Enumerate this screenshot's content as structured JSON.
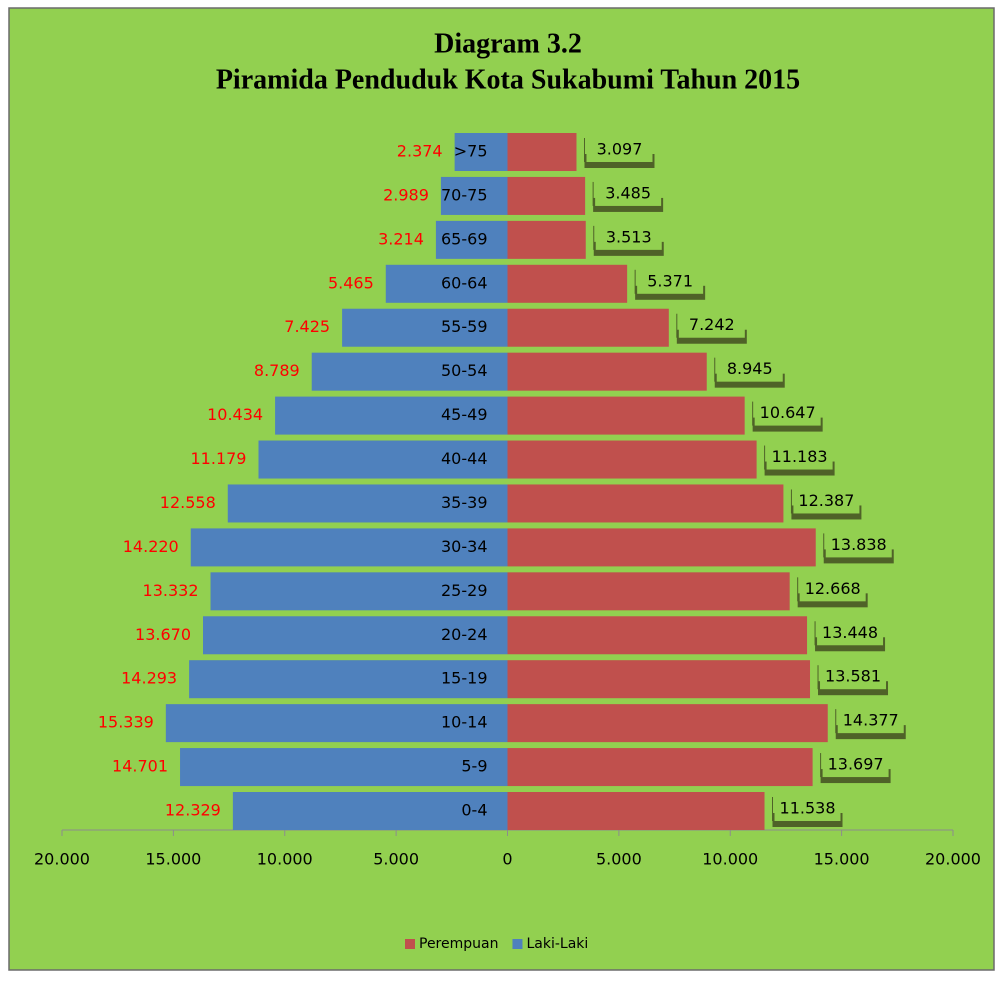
{
  "chart_data": {
    "type": "pyramid",
    "title": "Diagram 3.2",
    "subtitle": "Piramida Penduduk Kota Sukabumi Tahun 2015",
    "categories": [
      "0-4",
      "5-9",
      "10-14",
      "15-19",
      "20-24",
      "25-29",
      "30-34",
      "35-39",
      "40-44",
      "45-49",
      "50-54",
      "55-59",
      "60-64",
      "65-69",
      "70-75",
      ">75"
    ],
    "series": [
      {
        "name": "Perempuan",
        "color": "#c0504d",
        "side": "right",
        "values": [
          11538,
          13697,
          14377,
          13581,
          13448,
          12668,
          13838,
          12387,
          11183,
          10647,
          8945,
          7242,
          5371,
          3513,
          3485,
          3097
        ],
        "value_labels": [
          "11.538",
          "13.697",
          "14.377",
          "13.581",
          "13.448",
          "12.668",
          "13.838",
          "12.387",
          "11.183",
          "10.647",
          "8.945",
          "7.242",
          "5.371",
          "3.513",
          "3.485",
          "3.097"
        ]
      },
      {
        "name": "Laki-Laki",
        "color": "#4f81bd",
        "side": "left",
        "values": [
          12329,
          14701,
          15339,
          14293,
          13670,
          13332,
          14220,
          12558,
          11179,
          10434,
          8789,
          7425,
          5465,
          3214,
          2989,
          2374
        ],
        "value_labels": [
          "12.329",
          "14.701",
          "15.339",
          "14.293",
          "13.670",
          "13.332",
          "14.220",
          "12.558",
          "11.179",
          "10.434",
          "8.789",
          "7.425",
          "5.465",
          "3.214",
          "2.989",
          "2.374"
        ]
      }
    ],
    "xlim": [
      -20000,
      20000
    ],
    "xticks": [
      {
        "value": -20000,
        "label": "20.000"
      },
      {
        "value": -15000,
        "label": "15.000"
      },
      {
        "value": -10000,
        "label": "10.000"
      },
      {
        "value": -5000,
        "label": "5.000"
      },
      0,
      {
        "value": 5000,
        "label": "5.000"
      },
      {
        "value": 10000,
        "label": "10.000"
      },
      {
        "value": 15000,
        "label": "15.000"
      },
      {
        "value": 20000,
        "label": "20.000"
      }
    ],
    "legend": "bottom"
  }
}
